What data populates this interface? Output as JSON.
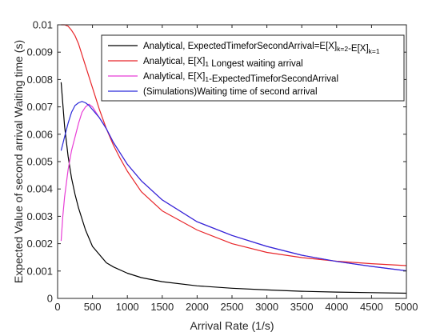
{
  "chart_data": {
    "type": "line",
    "xlabel": "Arrival Rate (1/s)",
    "ylabel": "Expected Value of second arrival Waiting time  (s)",
    "xlim": [
      0,
      5000
    ],
    "ylim": [
      0,
      0.01
    ],
    "x_ticks": [
      0,
      500,
      1000,
      1500,
      2000,
      2500,
      3000,
      3500,
      4000,
      4500,
      5000
    ],
    "y_ticks": [
      0,
      0.001,
      0.002,
      0.003,
      0.004,
      0.005,
      0.006,
      0.007,
      0.008,
      0.009,
      0.01
    ],
    "x_tick_labels": [
      "0",
      "500",
      "1000",
      "1500",
      "2000",
      "2500",
      "3000",
      "3500",
      "4000",
      "4500",
      "5000"
    ],
    "y_tick_labels": [
      "0",
      "0.001",
      "0.002",
      "0.003",
      "0.004",
      "0.005",
      "0.006",
      "0.007",
      "0.008",
      "0.009",
      "0.01"
    ],
    "grid": false,
    "legend_position": "top-right",
    "series": [
      {
        "name": "Analytical, ExpectedTimeforSecondArrival=E[X]k=2-E[X]k=1",
        "legend": {
          "prefix": "Analytical, ExpectedTimeforSecondArrival=E[X]",
          "sub1": "k=2",
          "mid": "-E[X]",
          "sub2": "k=1"
        },
        "color": "#000000",
        "x": [
          50,
          100,
          150,
          200,
          250,
          300,
          400,
          500,
          600,
          700,
          800,
          1000,
          1200,
          1500,
          2000,
          2500,
          3000,
          3500,
          4000,
          4500,
          5000
        ],
        "y": [
          0.0079,
          0.0063,
          0.0052,
          0.0044,
          0.0038,
          0.0033,
          0.0025,
          0.0019,
          0.0016,
          0.0013,
          0.00115,
          0.00092,
          0.00076,
          0.00061,
          0.00046,
          0.00037,
          0.00031,
          0.00026,
          0.00023,
          0.00021,
          0.00019
        ]
      },
      {
        "name": "Analytical, E[X]1 Longest waiting arrival",
        "legend": {
          "prefix": "Analytical, E[X]",
          "sub1": "1",
          "mid": "  Longest waiting arrival",
          "sub2": ""
        },
        "color": "#e8262a",
        "x": [
          50,
          100,
          150,
          200,
          250,
          300,
          400,
          500,
          600,
          700,
          800,
          900,
          1000,
          1200,
          1500,
          2000,
          2500,
          3000,
          3500,
          4000,
          4500,
          5000
        ],
        "y": [
          0.01,
          0.01,
          0.00995,
          0.0098,
          0.0096,
          0.0093,
          0.0085,
          0.0077,
          0.0069,
          0.0062,
          0.0056,
          0.0051,
          0.00465,
          0.0039,
          0.0032,
          0.0025,
          0.002,
          0.00168,
          0.00149,
          0.00136,
          0.00127,
          0.0012
        ]
      },
      {
        "name": "Analytical, E[X]1-ExpectedTimeforSecondArrival",
        "legend": {
          "prefix": "Analytical, E[X]",
          "sub1": "1",
          "mid": "-ExpectedTimeforSecondArrival",
          "sub2": ""
        },
        "color": "#e83fd6",
        "x": [
          50,
          75,
          100,
          150,
          200,
          250,
          300,
          350,
          400,
          450,
          500,
          600,
          700,
          800,
          1000,
          1200,
          1500,
          2000,
          2500,
          3000,
          3500,
          4000,
          4500,
          5000
        ],
        "y": [
          0.0021,
          0.003,
          0.0037,
          0.0047,
          0.0054,
          0.0059,
          0.0064,
          0.0068,
          0.007,
          0.0071,
          0.007,
          0.0066,
          0.0062,
          0.0057,
          0.0049,
          0.0043,
          0.0036,
          0.0028,
          0.0023,
          0.0019,
          0.00158,
          0.00135,
          0.00117,
          0.00101
        ]
      },
      {
        "name": "(Simulations)Waiting time of second arrival",
        "legend": {
          "prefix": "(Simulations)Waiting time of second arrival",
          "sub1": "",
          "mid": "",
          "sub2": ""
        },
        "color": "#2b2bd9",
        "x": [
          50,
          100,
          150,
          200,
          250,
          300,
          350,
          400,
          450,
          500,
          600,
          700,
          800,
          1000,
          1200,
          1500,
          2000,
          2500,
          3000,
          3500,
          4000,
          4500,
          5000
        ],
        "y": [
          0.0054,
          0.0059,
          0.0064,
          0.0068,
          0.00705,
          0.00715,
          0.0072,
          0.00715,
          0.00705,
          0.0069,
          0.0066,
          0.0062,
          0.0057,
          0.0049,
          0.0043,
          0.0036,
          0.0028,
          0.0023,
          0.0019,
          0.00158,
          0.00135,
          0.00117,
          0.00101
        ]
      }
    ]
  }
}
